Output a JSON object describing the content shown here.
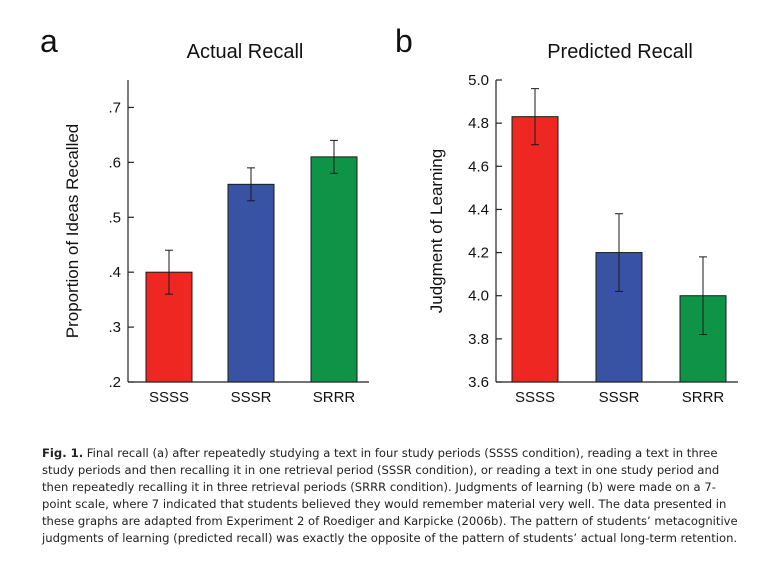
{
  "chart_data": [
    {
      "type": "bar",
      "panel": "a",
      "title": "Actual Recall",
      "xlabel": "",
      "ylabel": "Proportion of Ideas Recalled",
      "categories": [
        "SSSS",
        "SSSR",
        "SRRR"
      ],
      "values": [
        0.4,
        0.56,
        0.61
      ],
      "error_low": [
        0.36,
        0.53,
        0.58
      ],
      "error_high": [
        0.44,
        0.59,
        0.64
      ],
      "colors": [
        "#ee2722",
        "#3852a4",
        "#0f9447"
      ],
      "ylim": [
        0.2,
        0.75
      ],
      "yticks": [
        0.2,
        0.3,
        0.4,
        0.5,
        0.6,
        0.7
      ],
      "ytick_labels": [
        ".2",
        ".3",
        ".4",
        ".5",
        ".6",
        ".7"
      ],
      "grid": false
    },
    {
      "type": "bar",
      "panel": "b",
      "title": "Predicted Recall",
      "xlabel": "",
      "ylabel": "Judgment of Learning",
      "categories": [
        "SSSS",
        "SSSR",
        "SRRR"
      ],
      "values": [
        4.83,
        4.2,
        4.0
      ],
      "error_low": [
        4.7,
        4.02,
        3.82
      ],
      "error_high": [
        4.96,
        4.38,
        4.18
      ],
      "colors": [
        "#ee2722",
        "#3852a4",
        "#0f9447"
      ],
      "ylim": [
        3.6,
        5.0
      ],
      "yticks": [
        3.6,
        3.8,
        4.0,
        4.2,
        4.4,
        4.6,
        4.8,
        5.0
      ],
      "ytick_labels": [
        "3.6",
        "3.8",
        "4.0",
        "4.2",
        "4.4",
        "4.6",
        "4.8",
        "5.0"
      ],
      "grid": false
    }
  ],
  "caption": {
    "label": "Fig. 1.",
    "text": "Final recall (a) after repeatedly studying a text in four study periods (SSSS condition), reading a text in three study periods and then recalling it in one retrieval period (SSSR condition), or reading a text in one study period and then repeatedly recalling it in three retrieval periods (SRRR condition). Judgments of learning (b) were made on a 7-point scale, where 7 indicated that students believed they would remember material very well. The data presented in these graphs are adapted from Experiment 2 of Roediger and Karpicke (2006b). The pattern of students’ metacognitive judgments of learning (predicted recall) was exactly the opposite of the pattern of students’ actual long-term retention."
  }
}
